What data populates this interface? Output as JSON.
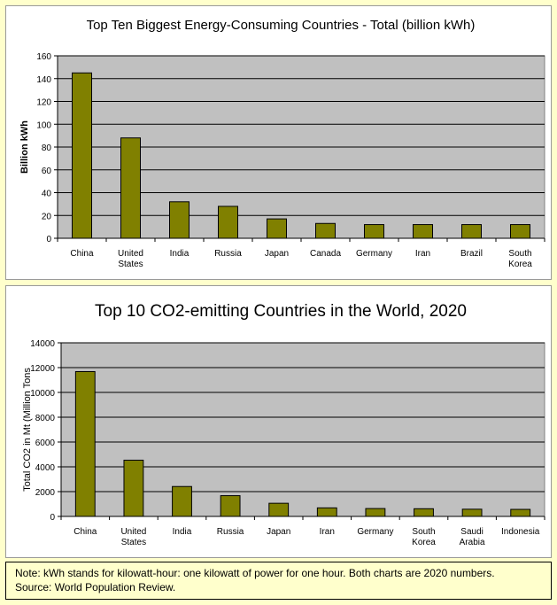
{
  "chart_data": [
    {
      "type": "bar",
      "title": "Top Ten Biggest Energy-Consuming Countries - Total (billion kWh)",
      "xlabel": "",
      "ylabel": "Billion kWh",
      "ylim": [
        0,
        160
      ],
      "yticks": [
        0,
        20,
        40,
        60,
        80,
        100,
        120,
        140,
        160
      ],
      "categories": [
        [
          "China"
        ],
        [
          "United",
          "States"
        ],
        [
          "India"
        ],
        [
          "Russia"
        ],
        [
          "Japan"
        ],
        [
          "Canada"
        ],
        [
          "Germany"
        ],
        [
          "Iran"
        ],
        [
          "Brazil"
        ],
        [
          "South",
          "Korea"
        ]
      ],
      "values": [
        145,
        88,
        32,
        28,
        17,
        13,
        12,
        12,
        12,
        12
      ],
      "bar_color": "#808000",
      "plot_bg": "#c0c0c0",
      "legend": "none"
    },
    {
      "type": "bar",
      "title": "Top 10 CO2-emitting Countries in the World, 2020",
      "xlabel": "",
      "ylabel": "Total CO2 in Mt (Million Tons",
      "ylim": [
        0,
        14000
      ],
      "yticks": [
        0,
        2000,
        4000,
        6000,
        8000,
        10000,
        12000,
        14000
      ],
      "categories": [
        [
          "China"
        ],
        [
          "United",
          "States"
        ],
        [
          "India"
        ],
        [
          "Russia"
        ],
        [
          "Japan"
        ],
        [
          "Iran"
        ],
        [
          "Germany"
        ],
        [
          "South",
          "Korea"
        ],
        [
          "Saudi",
          "Arabia"
        ],
        [
          "Indonesia"
        ]
      ],
      "values": [
        11680,
        4535,
        2412,
        1674,
        1061,
        690,
        636,
        621,
        582,
        568
      ],
      "bar_color": "#808000",
      "plot_bg": "#c0c0c0",
      "legend": "none"
    }
  ],
  "note": {
    "line1": "Note: kWh stands for kilowatt-hour: one kilowatt of power for one hour. Both charts are 2020 numbers.",
    "line2": "Source: World Population Review."
  }
}
